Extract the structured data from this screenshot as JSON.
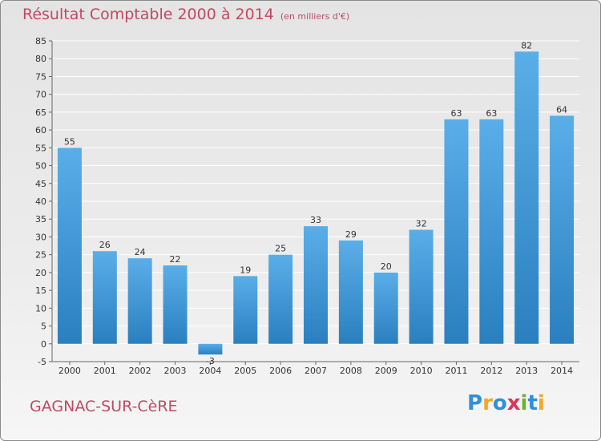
{
  "header": {
    "title": "Résultat Comptable 2000 à 2014",
    "subtitle": "(en milliers d'€)"
  },
  "footer": {
    "place": "GAGNAC-SUR-CèRE",
    "logo_text": "Proxiti"
  },
  "colors": {
    "bar_top": "#5aaee8",
    "bar_bottom": "#2a7fc0",
    "title": "#c04a63",
    "grid": "#ffffff"
  },
  "chart_data": {
    "type": "bar",
    "categories": [
      "2000",
      "2001",
      "2002",
      "2003",
      "2004",
      "2005",
      "2006",
      "2007",
      "2008",
      "2009",
      "2010",
      "2011",
      "2012",
      "2013",
      "2014"
    ],
    "values": [
      55,
      26,
      24,
      22,
      -3,
      19,
      25,
      33,
      29,
      20,
      32,
      63,
      63,
      82,
      64
    ],
    "data_labels": [
      "55",
      "26",
      "24",
      "22",
      "-3",
      "19",
      "25",
      "33",
      "29",
      "20",
      "32",
      "63",
      "63",
      "82",
      "64"
    ],
    "title": "Résultat Comptable 2000 à 2014",
    "xlabel": "",
    "ylabel": "",
    "ylim": [
      -5,
      85
    ],
    "yticks": [
      -5,
      0,
      5,
      10,
      15,
      20,
      25,
      30,
      35,
      40,
      45,
      50,
      55,
      60,
      65,
      70,
      75,
      80,
      85
    ],
    "grid": true,
    "legend": "none"
  }
}
